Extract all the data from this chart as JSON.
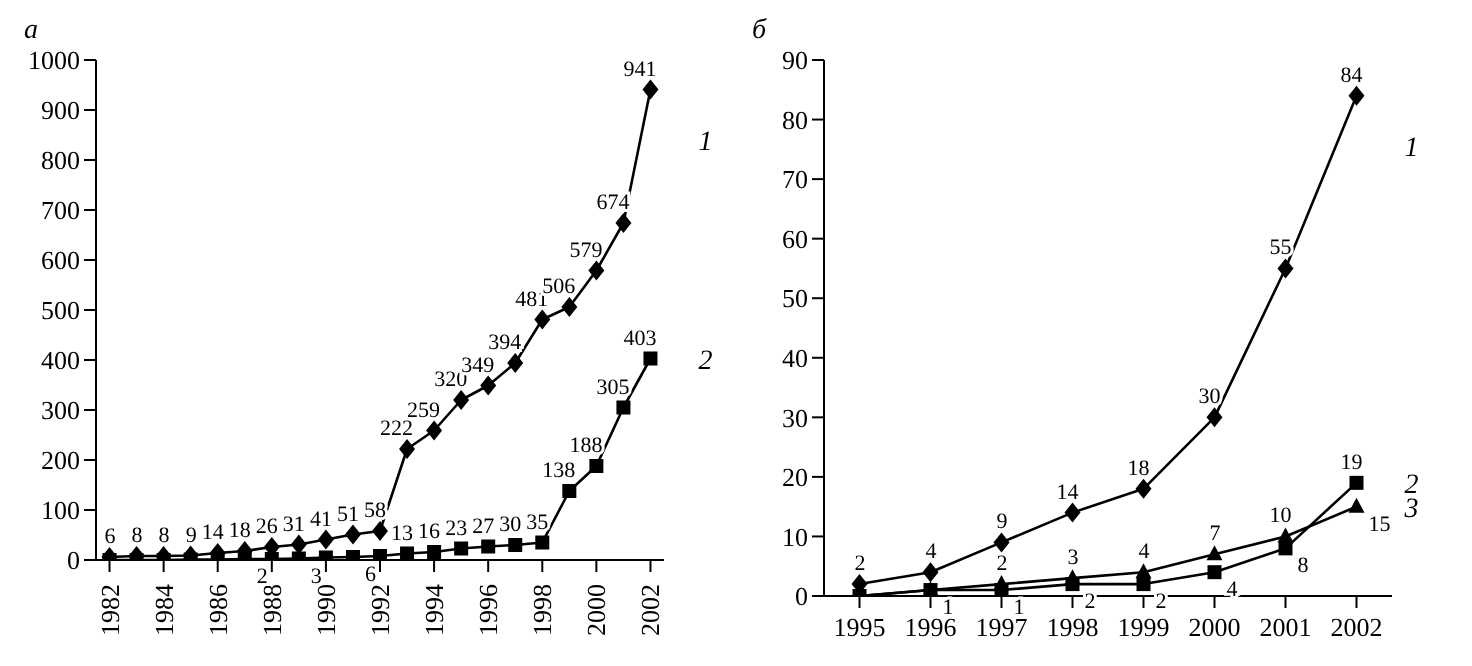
{
  "chart_data": [
    {
      "type": "line",
      "title": "а",
      "x": [
        1982,
        1983,
        1984,
        1985,
        1986,
        1987,
        1988,
        1989,
        1990,
        1991,
        1992,
        1993,
        1994,
        1995,
        1996,
        1997,
        1998,
        1999,
        2000,
        2001,
        2002
      ],
      "xlim": [
        1981.5,
        2002.5
      ],
      "xticks": [
        1982,
        1984,
        1986,
        1988,
        1990,
        1992,
        1994,
        1996,
        1998,
        2000,
        2002
      ],
      "ylim": [
        0,
        1000
      ],
      "yticks": [
        0,
        100,
        200,
        300,
        400,
        500,
        600,
        700,
        800,
        900,
        1000
      ],
      "grid": false,
      "legend": false,
      "series": [
        {
          "name": "1",
          "color": "#000000",
          "marker": "diamond",
          "values": [
            6,
            8,
            8,
            9,
            14,
            18,
            26,
            31,
            41,
            51,
            58,
            222,
            259,
            320,
            349,
            394,
            481,
            506,
            579,
            674,
            941
          ],
          "value_labels": [
            "6",
            "8",
            "8",
            "9",
            "14",
            "18",
            "26",
            "31",
            "41",
            "51",
            "58",
            "222",
            "259",
            "320",
            "349",
            "394",
            "481",
            "506",
            "579",
            "674",
            "941"
          ]
        },
        {
          "name": "2",
          "color": "#000000",
          "marker": "square",
          "values": [
            0,
            0,
            0,
            1,
            1,
            2,
            2,
            3,
            5,
            6,
            8,
            13,
            16,
            23,
            27,
            30,
            35,
            138,
            188,
            305,
            403
          ],
          "value_labels": [
            null,
            null,
            null,
            null,
            null,
            "2",
            null,
            "3",
            null,
            "6",
            null,
            "13",
            "16",
            "23",
            "27",
            "30",
            "35",
            "138",
            "188",
            "305",
            "403"
          ]
        }
      ]
    },
    {
      "type": "line",
      "title": "б",
      "x": [
        1995,
        1996,
        1997,
        1998,
        1999,
        2000,
        2001,
        2002
      ],
      "xlim": [
        1994.5,
        2002.5
      ],
      "xticks": [
        1995,
        1996,
        1997,
        1998,
        1999,
        2000,
        2001,
        2002
      ],
      "ylim": [
        0,
        90
      ],
      "yticks": [
        0,
        10,
        20,
        30,
        40,
        50,
        60,
        70,
        80,
        90
      ],
      "grid": false,
      "legend": false,
      "series": [
        {
          "name": "1",
          "color": "#000000",
          "marker": "diamond",
          "values": [
            2,
            4,
            9,
            14,
            18,
            30,
            55,
            84
          ],
          "value_labels": [
            "2",
            "4",
            "9",
            "14",
            "18",
            "30",
            "55",
            "84"
          ]
        },
        {
          "name": "2",
          "color": "#000000",
          "marker": "square",
          "values": [
            0,
            1,
            1,
            2,
            2,
            4,
            8,
            19
          ],
          "value_labels": [
            null,
            "1",
            "1",
            "2",
            "2",
            "4",
            "8",
            "19"
          ]
        },
        {
          "name": "3",
          "color": "#000000",
          "marker": "triangle",
          "values": [
            0,
            1,
            2,
            3,
            4,
            7,
            10,
            15
          ],
          "value_labels": [
            null,
            null,
            "2",
            "3",
            "4",
            "7",
            "10",
            "15"
          ]
        }
      ]
    }
  ]
}
